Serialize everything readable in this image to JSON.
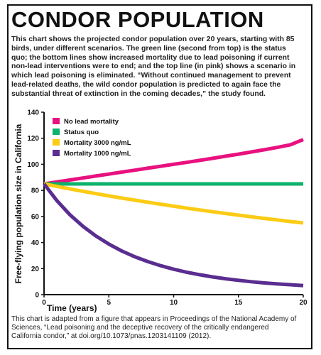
{
  "header": {
    "title": "CONDOR POPULATION",
    "description": "This chart shows the projected condor population over 20 years, starting with 85 birds, under different scenarios. The green line (second from top) is the status quo; the bottom lines show increased mortality due to lead poisoning if current non-lead interventions were to end; and the top line (in pink) shows a scenario in which lead poisoning is eliminated. “Without continued management to prevent lead-related deaths, the wild condor population is predicted to again face the substantial threat of extinction in the coming decades,” the study found."
  },
  "footer": {
    "source": "This chart is adapted from a figure that appears in Proceedings of the National Academy of Sciences, “Lead poisoning and the deceptive recovery of the critically endangered California condor,” at doi.org/10.1073/pnas.1203141109 (2012)."
  },
  "chart_data": {
    "type": "line",
    "xlabel": "Time (years)",
    "ylabel": "Free-flying population size in California",
    "xlim": [
      0,
      20
    ],
    "ylim": [
      0,
      140
    ],
    "xticks": [
      0,
      5,
      10,
      15,
      20
    ],
    "yticks": [
      0,
      20,
      40,
      60,
      80,
      100,
      120,
      140
    ],
    "grid": false,
    "legend_position": "top-left",
    "x": [
      0,
      1,
      2,
      3,
      4,
      5,
      6,
      7,
      8,
      9,
      10,
      11,
      12,
      13,
      14,
      15,
      16,
      17,
      18,
      19,
      20
    ],
    "series": [
      {
        "name": "No lead mortality",
        "color": "#e8117f",
        "values": [
          85,
          86.5,
          88,
          89.5,
          91,
          92.5,
          94,
          95.5,
          97,
          98.5,
          100,
          101.5,
          103,
          104.6,
          106.2,
          107.8,
          109.5,
          111.2,
          113,
          115,
          119
        ]
      },
      {
        "name": "Status quo",
        "color": "#0bb36b",
        "values": [
          85,
          85,
          85,
          85,
          85,
          85,
          85,
          85,
          85,
          85,
          85,
          85,
          85,
          85,
          85,
          85,
          85,
          85,
          85,
          85,
          85
        ]
      },
      {
        "name": "Mortality 3000 ng/mL",
        "color": "#fccb14",
        "values": [
          85,
          83,
          81.1,
          79.3,
          77.5,
          75.8,
          74.1,
          72.5,
          70.9,
          69.4,
          67.9,
          66.4,
          65,
          63.6,
          62.3,
          61,
          59.7,
          58.5,
          57.3,
          56.1,
          55
        ]
      },
      {
        "name": "Mortality 1000 ng/mL",
        "color": "#5a2d91",
        "values": [
          85,
          72,
          61.3,
          52.4,
          45,
          38.8,
          33.5,
          29.1,
          25.4,
          22.2,
          19.5,
          17.2,
          15.3,
          13.6,
          12.2,
          11,
          9.9,
          9,
          8.2,
          7.6,
          7
        ]
      }
    ]
  }
}
